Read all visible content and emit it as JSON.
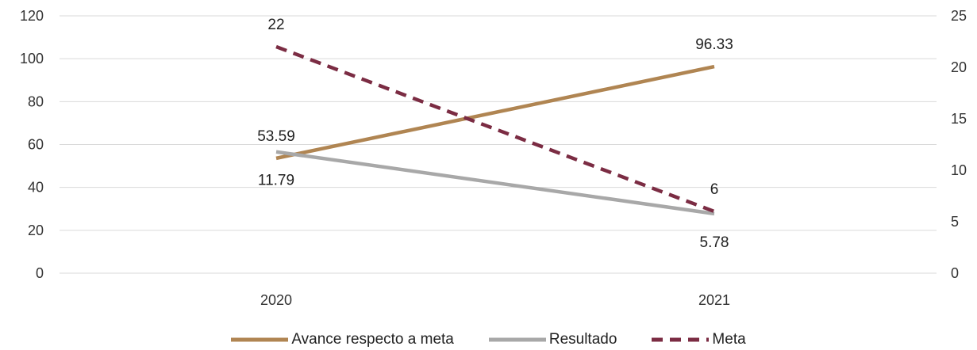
{
  "chart_data": {
    "type": "line",
    "categories": [
      "2020",
      "2021"
    ],
    "y_left": {
      "ylim": [
        0,
        120
      ],
      "ticks": [
        "0",
        "20",
        "40",
        "60",
        "80",
        "100",
        "120"
      ]
    },
    "y_right": {
      "ylim": [
        0,
        25
      ],
      "ticks": [
        "0",
        "5",
        "10",
        "15",
        "20",
        "25"
      ]
    },
    "grid": true,
    "legend_position": "bottom",
    "series": [
      {
        "name": "Avance respecto a meta",
        "axis": "left",
        "values": [
          53.59,
          96.33
        ],
        "labels": [
          "53.59",
          "96.33"
        ],
        "color": "#b08552",
        "style": "solid"
      },
      {
        "name": "Resultado",
        "axis": "right",
        "values": [
          11.79,
          5.78
        ],
        "labels": [
          "11.79",
          "5.78"
        ],
        "color": "#a8a8a8",
        "style": "solid"
      },
      {
        "name": "Meta",
        "axis": "right",
        "values": [
          22,
          6
        ],
        "labels": [
          "22",
          "6"
        ],
        "color": "#7b2c43",
        "style": "dashed"
      }
    ]
  }
}
